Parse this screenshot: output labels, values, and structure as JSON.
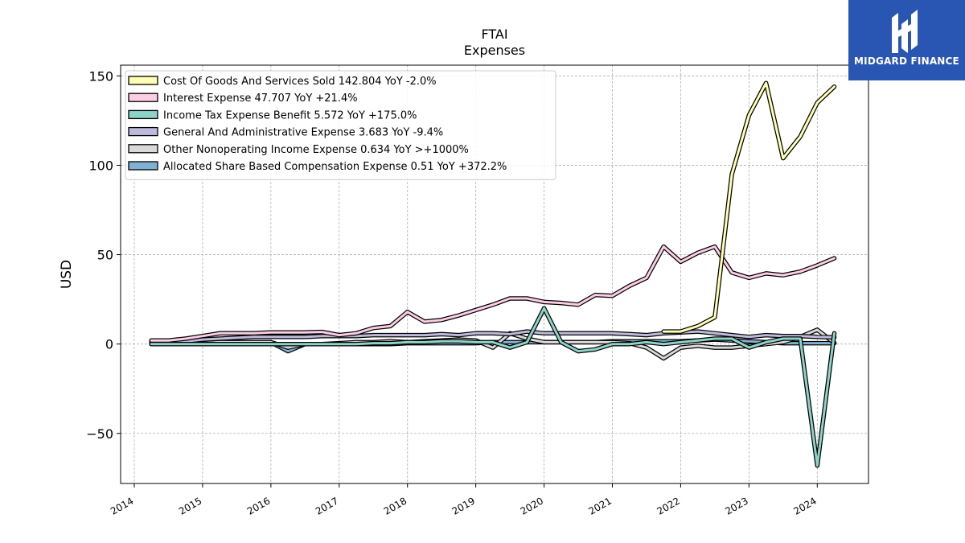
{
  "branding": {
    "name": "MIDGARD FINANCE",
    "logo_icon": "midgard-m-logo-icon",
    "background": "#2a56b3"
  },
  "chart_data": {
    "type": "line",
    "title": "FTAI",
    "subtitle": "Expenses",
    "ylabel": "USD",
    "xlabel": "",
    "xlim": [
      2013.8,
      2024.75
    ],
    "ylim": [
      -78,
      156
    ],
    "xticks": [
      2014,
      2015,
      2016,
      2017,
      2018,
      2019,
      2020,
      2021,
      2022,
      2023,
      2024
    ],
    "yticks": [
      -50,
      0,
      50,
      100,
      150
    ],
    "grid": true,
    "legend_position": "upper-left",
    "series": [
      {
        "name": "Cost Of Goods And Services Sold",
        "legend_label": "Cost Of Goods And Services Sold  142.804 YoY -2.0%",
        "color": "#ffffb3",
        "x": [
          2021.75,
          2022.0,
          2022.25,
          2022.5,
          2022.75,
          2023.0,
          2023.25,
          2023.5,
          2023.75,
          2024.0,
          2024.25
        ],
        "y": [
          7,
          7,
          10,
          15,
          95,
          128,
          146,
          104,
          116,
          135,
          144
        ]
      },
      {
        "name": "Interest Expense",
        "legend_label": "Interest Expense  47.707 YoY +21.4%",
        "color": "#fccde5",
        "x": [
          2014.25,
          2014.5,
          2014.75,
          2015.0,
          2015.25,
          2015.5,
          2015.75,
          2016.0,
          2016.25,
          2016.5,
          2016.75,
          2017.0,
          2017.25,
          2017.5,
          2017.75,
          2018.0,
          2018.25,
          2018.5,
          2018.75,
          2019.0,
          2019.25,
          2019.5,
          2019.75,
          2020.0,
          2020.25,
          2020.5,
          2020.75,
          2021.0,
          2021.25,
          2021.5,
          2021.75,
          2022.0,
          2022.25,
          2022.5,
          2022.75,
          2023.0,
          2023.25,
          2023.5,
          2023.75,
          2024.0,
          2024.25
        ],
        "y": [
          2,
          2,
          3,
          4.5,
          6,
          6,
          6,
          6.5,
          6.5,
          6.5,
          6.8,
          5,
          6,
          9,
          10,
          18,
          12.5,
          13.5,
          16,
          19,
          22,
          25.5,
          25.5,
          23.5,
          23,
          22,
          27.5,
          27,
          32.5,
          37,
          54.5,
          46,
          51,
          54.5,
          40,
          37,
          39.5,
          38.5,
          40.5,
          44,
          48
        ]
      },
      {
        "name": "Income Tax Expense Benefit",
        "legend_label": "Income Tax Expense Benefit  5.572 YoY +175.0%",
        "color": "#8dd3c7",
        "x": [
          2014.25,
          2014.5,
          2014.75,
          2015.0,
          2015.25,
          2015.5,
          2015.75,
          2016.0,
          2016.25,
          2016.5,
          2016.75,
          2017.0,
          2017.25,
          2017.5,
          2017.75,
          2018.0,
          2018.25,
          2018.5,
          2018.75,
          2019.0,
          2019.25,
          2019.5,
          2019.75,
          2020.0,
          2020.25,
          2020.5,
          2020.75,
          2021.0,
          2021.25,
          2021.5,
          2021.75,
          2022.0,
          2022.25,
          2022.5,
          2022.75,
          2023.0,
          2023.25,
          2023.5,
          2023.75,
          2024.0,
          2024.25
        ],
        "y": [
          0,
          0,
          0,
          0,
          0,
          0,
          0,
          0,
          0,
          0,
          0,
          0,
          0,
          0.5,
          0.5,
          1,
          1,
          1.5,
          1.5,
          1,
          1,
          -2,
          1,
          20,
          1,
          -4,
          -3,
          0,
          0,
          1,
          0,
          1,
          2,
          3,
          3,
          -2,
          1,
          3,
          3,
          -68,
          6
        ]
      },
      {
        "name": "General And Administrative Expense",
        "legend_label": "General And Administrative Expense  3.683 YoY -9.4%",
        "color": "#bebada",
        "x": [
          2014.25,
          2014.5,
          2014.75,
          2015.0,
          2015.25,
          2015.5,
          2015.75,
          2016.0,
          2016.25,
          2016.5,
          2016.75,
          2017.0,
          2017.25,
          2017.5,
          2017.75,
          2018.0,
          2018.25,
          2018.5,
          2018.75,
          2019.0,
          2019.25,
          2019.5,
          2019.75,
          2020.0,
          2020.25,
          2020.5,
          2020.75,
          2021.0,
          2021.25,
          2021.5,
          2021.75,
          2022.0,
          2022.25,
          2022.5,
          2022.75,
          2023.0,
          2023.25,
          2023.5,
          2023.75,
          2024.0,
          2024.25
        ],
        "y": [
          1,
          1,
          1.5,
          2.5,
          3,
          3.5,
          4,
          4,
          4,
          4,
          4.5,
          4.5,
          4.5,
          5,
          5,
          5,
          5,
          5.5,
          5,
          6,
          6,
          5.5,
          7,
          6,
          6,
          6,
          6,
          6,
          5.5,
          5,
          6,
          6.5,
          7,
          6,
          5,
          4,
          5,
          4.5,
          4.5,
          4,
          3.7
        ]
      },
      {
        "name": "Other Nonoperating Income Expense",
        "legend_label": "Other Nonoperating Income Expense  0.634 YoY >+1000%",
        "color": "#d9d9d9",
        "x": [
          2014.25,
          2014.5,
          2014.75,
          2015.0,
          2015.25,
          2015.5,
          2015.75,
          2016.0,
          2016.25,
          2016.5,
          2016.75,
          2017.0,
          2017.25,
          2017.5,
          2017.75,
          2018.0,
          2018.25,
          2018.5,
          2018.75,
          2019.0,
          2019.25,
          2019.5,
          2019.75,
          2020.0,
          2020.25,
          2020.5,
          2020.75,
          2021.0,
          2021.25,
          2021.5,
          2021.75,
          2022.0,
          2022.25,
          2022.5,
          2022.75,
          2023.0,
          2023.25,
          2023.5,
          2023.75,
          2024.0,
          2024.25
        ],
        "y": [
          0,
          0,
          0,
          0.5,
          1,
          1,
          1,
          1,
          -2,
          0,
          0,
          0.5,
          1,
          1,
          1.5,
          1,
          1.5,
          2,
          2.5,
          2,
          -2,
          6,
          3,
          1,
          1,
          1,
          1,
          1,
          0.5,
          -2,
          -8,
          -2,
          -1,
          -2,
          -2,
          -1,
          0,
          1,
          4,
          8,
          0.6
        ]
      },
      {
        "name": "Allocated Share Based Compensation Expense",
        "legend_label": "Allocated Share Based Compensation Expense  0.51 YoY +372.2%",
        "color": "#80b1d3",
        "x": [
          2014.25,
          2014.5,
          2014.75,
          2015.0,
          2015.25,
          2015.5,
          2015.75,
          2016.0,
          2016.25,
          2016.5,
          2016.75,
          2017.0,
          2017.25,
          2017.5,
          2017.75,
          2018.0,
          2018.25,
          2018.5,
          2018.75,
          2019.0,
          2019.25,
          2019.5,
          2019.75,
          2020.0,
          2020.25,
          2020.5,
          2020.75,
          2021.0,
          2021.25,
          2021.5,
          2021.75,
          2022.0,
          2022.25,
          2022.5,
          2022.75,
          2023.0,
          2023.25,
          2023.5,
          2023.75,
          2024.0,
          2024.25
        ],
        "y": [
          0,
          0,
          0.5,
          1,
          1.5,
          1,
          1,
          1,
          -4,
          0,
          0,
          0,
          0,
          0,
          0,
          0.5,
          0.5,
          0.5,
          0.5,
          0.5,
          1,
          1,
          1,
          1,
          1,
          1,
          1,
          1.5,
          1.5,
          1.5,
          1.5,
          1.5,
          2,
          2.5,
          2,
          1.5,
          1,
          0.5,
          0.5,
          0.5,
          0.5
        ]
      }
    ]
  }
}
